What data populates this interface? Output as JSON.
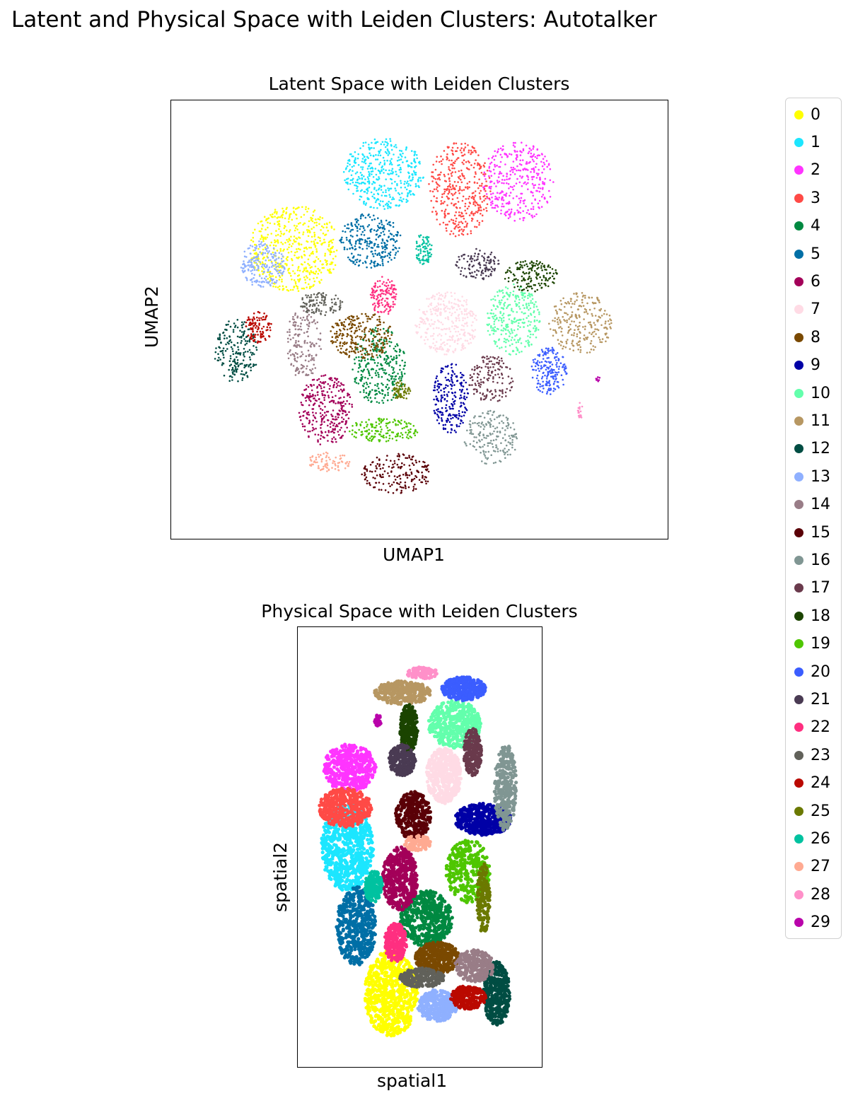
{
  "figure": {
    "suptitle": "Latent and Physical Space with Leiden Clusters: Autotalker"
  },
  "chart_data": [
    {
      "type": "scatter",
      "title": "Latent Space with Leiden Clusters",
      "xlabel": "UMAP1",
      "ylabel": "UMAP2",
      "xticks": false,
      "yticks": false,
      "grid": false,
      "xlim": [
        0,
        100
      ],
      "ylim": [
        0,
        100
      ],
      "series": [
        {
          "name": "0",
          "color": "#ffff00",
          "cx": 22,
          "cy": 68,
          "rx": 10,
          "ry": 11,
          "n": 520
        },
        {
          "name": "1",
          "color": "#1ce6ff",
          "cx": 42,
          "cy": 87,
          "rx": 9,
          "ry": 9,
          "n": 420
        },
        {
          "name": "2",
          "color": "#ff34ff",
          "cx": 72,
          "cy": 85,
          "rx": 8,
          "ry": 10,
          "n": 360
        },
        {
          "name": "3",
          "color": "#ff4a46",
          "cx": 59,
          "cy": 83,
          "rx": 7,
          "ry": 12,
          "n": 380
        },
        {
          "name": "4",
          "color": "#008941",
          "cx": 41,
          "cy": 38,
          "rx": 6,
          "ry": 10,
          "n": 300
        },
        {
          "name": "5",
          "color": "#006fa6",
          "cx": 39,
          "cy": 70,
          "rx": 7,
          "ry": 7,
          "n": 280
        },
        {
          "name": "6",
          "color": "#a30059",
          "cx": 29,
          "cy": 27,
          "rx": 6,
          "ry": 9,
          "n": 300
        },
        {
          "name": "7",
          "color": "#ffdbe5",
          "cx": 56,
          "cy": 49,
          "rx": 7,
          "ry": 8,
          "n": 320
        },
        {
          "name": "8",
          "color": "#7a4900",
          "cx": 37,
          "cy": 46,
          "rx": 7,
          "ry": 6,
          "n": 260
        },
        {
          "name": "9",
          "color": "#0000a6",
          "cx": 57,
          "cy": 30,
          "rx": 4,
          "ry": 9,
          "n": 220
        },
        {
          "name": "10",
          "color": "#63ffac",
          "cx": 71,
          "cy": 50,
          "rx": 6,
          "ry": 9,
          "n": 300
        },
        {
          "name": "11",
          "color": "#b79762",
          "cx": 86,
          "cy": 49,
          "rx": 7,
          "ry": 8,
          "n": 240
        },
        {
          "name": "12",
          "color": "#004d43",
          "cx": 9,
          "cy": 42,
          "rx": 5,
          "ry": 8,
          "n": 200
        },
        {
          "name": "13",
          "color": "#8fb0ff",
          "cx": 15,
          "cy": 64,
          "rx": 5,
          "ry": 6,
          "n": 200
        },
        {
          "name": "14",
          "color": "#997d87",
          "cx": 24,
          "cy": 44,
          "rx": 4,
          "ry": 9,
          "n": 170
        },
        {
          "name": "15",
          "color": "#5a0007",
          "cx": 45,
          "cy": 11,
          "rx": 8,
          "ry": 5,
          "n": 180
        },
        {
          "name": "16",
          "color": "#809693",
          "cx": 66,
          "cy": 20,
          "rx": 6,
          "ry": 7,
          "n": 180
        },
        {
          "name": "17",
          "color": "#6a3a4c",
          "cx": 66,
          "cy": 35,
          "rx": 5,
          "ry": 6,
          "n": 150
        },
        {
          "name": "18",
          "color": "#1b4400",
          "cx": 75,
          "cy": 61,
          "rx": 6,
          "ry": 4,
          "n": 150
        },
        {
          "name": "19",
          "color": "#4fc601",
          "cx": 42,
          "cy": 22,
          "rx": 8,
          "ry": 3,
          "n": 160
        },
        {
          "name": "20",
          "color": "#3b5dff",
          "cx": 79,
          "cy": 37,
          "rx": 4,
          "ry": 6,
          "n": 180
        },
        {
          "name": "21",
          "color": "#4a3b53",
          "cx": 63,
          "cy": 64,
          "rx": 5,
          "ry": 4,
          "n": 120
        },
        {
          "name": "22",
          "color": "#ff2f80",
          "cx": 42,
          "cy": 56,
          "rx": 3,
          "ry": 5,
          "n": 130
        },
        {
          "name": "23",
          "color": "#61615a",
          "cx": 28,
          "cy": 54,
          "rx": 5,
          "ry": 3,
          "n": 110
        },
        {
          "name": "24",
          "color": "#ba0900",
          "cx": 14,
          "cy": 48,
          "rx": 3,
          "ry": 4,
          "n": 110
        },
        {
          "name": "25",
          "color": "#6b7900",
          "cx": 46,
          "cy": 32,
          "rx": 2,
          "ry": 2.5,
          "n": 60
        },
        {
          "name": "26",
          "color": "#00c2a0",
          "cx": 51,
          "cy": 68,
          "rx": 2,
          "ry": 4,
          "n": 80
        },
        {
          "name": "27",
          "color": "#ffaa92",
          "cx": 30,
          "cy": 14,
          "rx": 5,
          "ry": 2.5,
          "n": 80
        },
        {
          "name": "28",
          "color": "#ff90c9",
          "cx": 86,
          "cy": 27,
          "rx": 0.6,
          "ry": 2,
          "n": 20
        },
        {
          "name": "29",
          "color": "#b903aa",
          "cx": 90,
          "cy": 35,
          "rx": 0.5,
          "ry": 0.7,
          "n": 8
        }
      ]
    },
    {
      "type": "scatter",
      "title": "Physical Space with Leiden Clusters",
      "xlabel": "spatial1",
      "ylabel": "spatial2",
      "xticks": false,
      "yticks": false,
      "grid": false,
      "xlim": [
        0,
        100
      ],
      "ylim": [
        0,
        100
      ],
      "series": [
        {
          "name": "0",
          "color": "#ffff00",
          "cx": 37,
          "cy": 13,
          "rx": 12,
          "ry": 11,
          "n": 650
        },
        {
          "name": "1",
          "color": "#1ce6ff",
          "cx": 17,
          "cy": 50,
          "rx": 12,
          "ry": 11,
          "n": 650
        },
        {
          "name": "2",
          "color": "#ff34ff",
          "cx": 18,
          "cy": 70,
          "rx": 12,
          "ry": 6,
          "n": 420
        },
        {
          "name": "3",
          "color": "#ff4a46",
          "cx": 16,
          "cy": 60,
          "rx": 12,
          "ry": 5,
          "n": 420
        },
        {
          "name": "4",
          "color": "#008941",
          "cx": 53,
          "cy": 32,
          "rx": 12,
          "ry": 7,
          "n": 500
        },
        {
          "name": "5",
          "color": "#006fa6",
          "cx": 21,
          "cy": 30,
          "rx": 9,
          "ry": 10,
          "n": 450
        },
        {
          "name": "6",
          "color": "#a30059",
          "cx": 41,
          "cy": 42,
          "rx": 8,
          "ry": 8,
          "n": 420
        },
        {
          "name": "7",
          "color": "#ffdbe5",
          "cx": 61,
          "cy": 68,
          "rx": 8,
          "ry": 7,
          "n": 420
        },
        {
          "name": "8",
          "color": "#7a4900",
          "cx": 58,
          "cy": 22,
          "rx": 10,
          "ry": 4,
          "n": 380
        },
        {
          "name": "9",
          "color": "#0000a6",
          "cx": 79,
          "cy": 57,
          "rx": 13,
          "ry": 4,
          "n": 420
        },
        {
          "name": "10",
          "color": "#63ffac",
          "cx": 66,
          "cy": 81,
          "rx": 12,
          "ry": 6,
          "n": 440
        },
        {
          "name": "11",
          "color": "#b79762",
          "cx": 42,
          "cy": 89,
          "rx": 13,
          "ry": 3,
          "n": 340
        },
        {
          "name": "12",
          "color": "#004d43",
          "cx": 85,
          "cy": 13,
          "rx": 6,
          "ry": 8,
          "n": 360
        },
        {
          "name": "13",
          "color": "#8fb0ff",
          "cx": 58,
          "cy": 10,
          "rx": 9,
          "ry": 4,
          "n": 320
        },
        {
          "name": "14",
          "color": "#997d87",
          "cx": 75,
          "cy": 20,
          "rx": 9,
          "ry": 4,
          "n": 260
        },
        {
          "name": "15",
          "color": "#5a0007",
          "cx": 47,
          "cy": 58,
          "rx": 8,
          "ry": 6,
          "n": 300
        },
        {
          "name": "16",
          "color": "#809693",
          "cx": 89,
          "cy": 65,
          "rx": 5,
          "ry": 11,
          "n": 300
        },
        {
          "name": "17",
          "color": "#6a3a4c",
          "cx": 74,
          "cy": 74,
          "rx": 4,
          "ry": 6,
          "n": 220
        },
        {
          "name": "18",
          "color": "#1b4400",
          "cx": 45,
          "cy": 80,
          "rx": 4,
          "ry": 6,
          "n": 240
        },
        {
          "name": "19",
          "color": "#4fc601",
          "cx": 72,
          "cy": 44,
          "rx": 10,
          "ry": 8,
          "n": 300
        },
        {
          "name": "20",
          "color": "#3b5dff",
          "cx": 70,
          "cy": 90,
          "rx": 10,
          "ry": 3,
          "n": 320
        },
        {
          "name": "21",
          "color": "#4a3b53",
          "cx": 42,
          "cy": 72,
          "rx": 6,
          "ry": 4,
          "n": 240
        },
        {
          "name": "22",
          "color": "#ff2f80",
          "cx": 39,
          "cy": 26,
          "rx": 5,
          "ry": 5,
          "n": 240
        },
        {
          "name": "23",
          "color": "#61615a",
          "cx": 51,
          "cy": 17,
          "rx": 10,
          "ry": 2.5,
          "n": 220
        },
        {
          "name": "24",
          "color": "#ba0900",
          "cx": 72,
          "cy": 12,
          "rx": 8,
          "ry": 3,
          "n": 220
        },
        {
          "name": "25",
          "color": "#6b7900",
          "cx": 79,
          "cy": 37,
          "rx": 3,
          "ry": 9,
          "n": 160
        },
        {
          "name": "26",
          "color": "#00c2a0",
          "cx": 29,
          "cy": 40,
          "rx": 4,
          "ry": 4,
          "n": 160
        },
        {
          "name": "27",
          "color": "#ffaa92",
          "cx": 49,
          "cy": 51,
          "rx": 6,
          "ry": 2,
          "n": 110
        },
        {
          "name": "28",
          "color": "#ff90c9",
          "cx": 51,
          "cy": 94,
          "rx": 7,
          "ry": 1.5,
          "n": 90
        },
        {
          "name": "29",
          "color": "#b903aa",
          "cx": 31,
          "cy": 82,
          "rx": 1.5,
          "ry": 1.5,
          "n": 25
        }
      ]
    }
  ],
  "legend": {
    "placement": "right",
    "entries": [
      "0",
      "1",
      "2",
      "3",
      "4",
      "5",
      "6",
      "7",
      "8",
      "9",
      "10",
      "11",
      "12",
      "13",
      "14",
      "15",
      "16",
      "17",
      "18",
      "19",
      "20",
      "21",
      "22",
      "23",
      "24",
      "25",
      "26",
      "27",
      "28",
      "29"
    ]
  }
}
